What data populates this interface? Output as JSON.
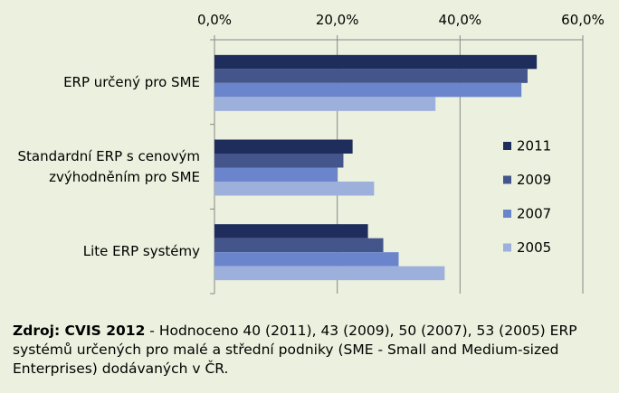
{
  "chart_data": {
    "type": "bar",
    "orientation": "horizontal",
    "categories": [
      [
        "ERP určený pro SME"
      ],
      [
        "Standardní ERP s cenovým",
        "zvýhodněním pro SME"
      ],
      [
        "Lite ERP systémy"
      ]
    ],
    "series": [
      {
        "name": "2011",
        "color": "#1f2d5c",
        "values": [
          52.5,
          22.5,
          25.0
        ]
      },
      {
        "name": "2009",
        "color": "#44558c",
        "values": [
          51.0,
          21.0,
          27.5
        ]
      },
      {
        "name": "2007",
        "color": "#6a85cc",
        "values": [
          50.0,
          20.0,
          30.0
        ]
      },
      {
        "name": "2005",
        "color": "#9dafdb",
        "values": [
          36.0,
          26.0,
          37.5
        ]
      }
    ],
    "xlim": [
      0,
      60
    ],
    "xticks": [
      0,
      20,
      40,
      60
    ],
    "xtick_labels": [
      "0,0%",
      "20,0%",
      "40,0%",
      "60,0%"
    ],
    "axis_position": "top",
    "grid": true,
    "legend_position": "right",
    "legend_order": [
      "2011",
      "2009",
      "2007",
      "2005"
    ]
  },
  "caption": {
    "bold": "Zdroj: CVIS 2012",
    "text": " - Hodnoceno 40 (2011), 43 (2009), 50 (2007), 53 (2005) ERP systémů určených pro malé a střední podniky (SME - Small and Medium-sized Enterprises) dodávaných v ČR."
  }
}
